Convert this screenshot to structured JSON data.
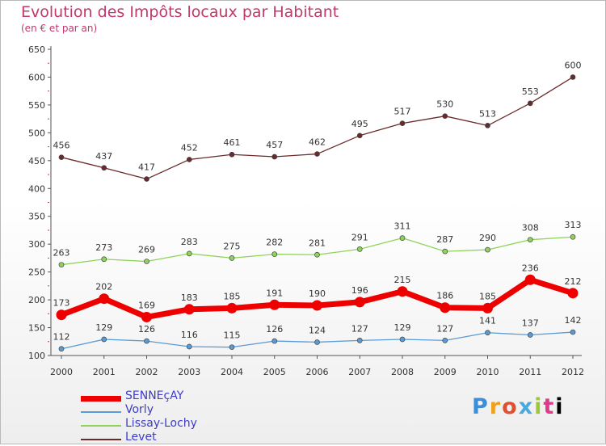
{
  "chart_data": {
    "type": "line",
    "title": "Evolution des Impôts locaux par Habitant",
    "subtitle": "(en € et par an)",
    "xlabel": "",
    "ylabel": "",
    "ylim": [
      100,
      650
    ],
    "yticks": [
      100,
      150,
      200,
      250,
      300,
      350,
      400,
      450,
      500,
      550,
      600,
      650
    ],
    "x": [
      "2000",
      "2001",
      "2002",
      "2003",
      "2004",
      "2005",
      "2006",
      "2007",
      "2008",
      "2009",
      "2010",
      "2011",
      "2012"
    ],
    "grid": false,
    "legend_position": "bottom-left",
    "series": [
      {
        "name": "SENNEçAY",
        "color": "#ee0000",
        "emphasis": true,
        "values": [
          173,
          202,
          169,
          183,
          185,
          191,
          190,
          196,
          215,
          186,
          185,
          236,
          212
        ]
      },
      {
        "name": "Vorly",
        "color": "#5b9bd5",
        "emphasis": false,
        "values": [
          112,
          129,
          126,
          116,
          115,
          126,
          124,
          127,
          129,
          127,
          141,
          137,
          142
        ]
      },
      {
        "name": "Lissay-Lochy",
        "color": "#8fd45a",
        "emphasis": false,
        "values": [
          263,
          273,
          269,
          283,
          275,
          282,
          281,
          291,
          311,
          287,
          290,
          308,
          313
        ]
      },
      {
        "name": "Levet",
        "color": "#6b2a2a",
        "emphasis": false,
        "values": [
          456,
          437,
          417,
          452,
          461,
          457,
          462,
          495,
          517,
          530,
          513,
          553,
          600
        ]
      }
    ]
  },
  "logo": {
    "letters": [
      "P",
      "r",
      "o",
      "x",
      "i",
      "t",
      "i"
    ]
  }
}
